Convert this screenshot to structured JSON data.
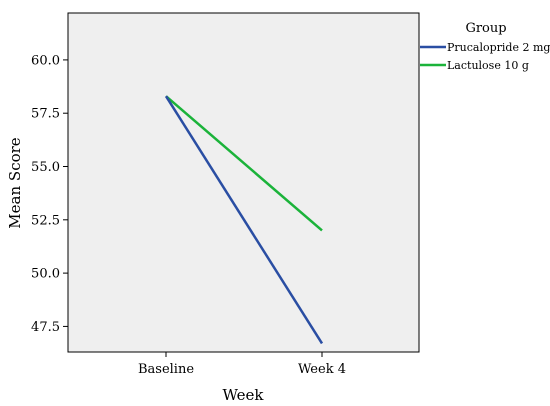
{
  "chart_data": {
    "type": "line",
    "xlabel": "Week",
    "ylabel": "Mean Score",
    "categories": [
      "Baseline",
      "Week 4"
    ],
    "ylim": [
      46.3,
      62.2
    ],
    "yticks": [
      "60.0",
      "57.5",
      "55.0",
      "52.5",
      "50.0",
      "47.5"
    ],
    "legend": {
      "title": "Group",
      "placement": "right-outside-top"
    },
    "grid": false,
    "series": [
      {
        "name": "Prucalopride 2 mg",
        "values": [
          58.3,
          46.7
        ],
        "color": "#2a4ea3"
      },
      {
        "name": "Lactulose 10 g",
        "values": [
          58.3,
          52.0
        ],
        "color": "#1bb33a"
      }
    ],
    "background": "#efefef"
  }
}
